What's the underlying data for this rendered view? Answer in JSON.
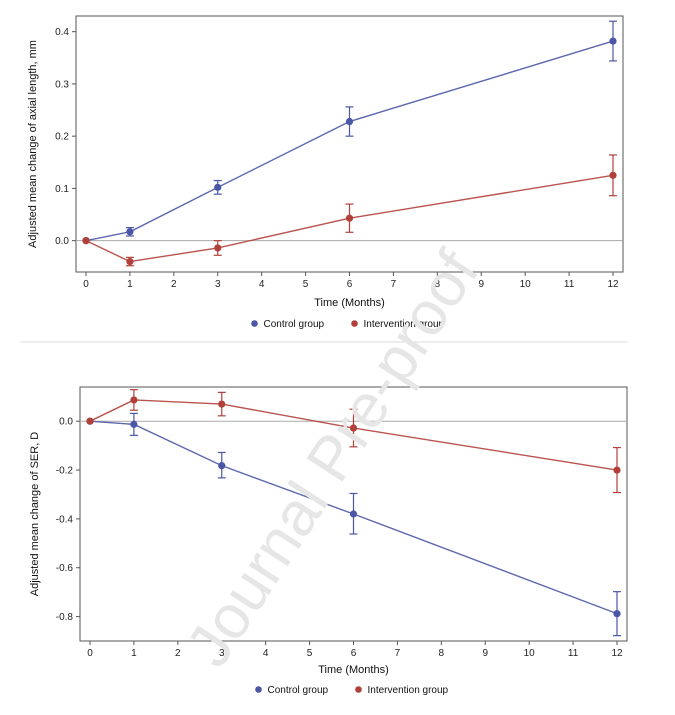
{
  "chart_data": [
    {
      "type": "line",
      "title": "",
      "xlabel": "Time (Months)",
      "ylabel": "Adjusted mean change of axial length, mm",
      "xlim": [
        0,
        12
      ],
      "ylim": [
        -0.06,
        0.43
      ],
      "x_ticks": [
        0,
        1,
        2,
        3,
        4,
        5,
        6,
        7,
        8,
        9,
        10,
        11,
        12
      ],
      "y_ticks": [
        0.0,
        0.1,
        0.2,
        0.3,
        0.4
      ],
      "y_tick_labels": [
        "0.0",
        "0.1",
        "0.2",
        "0.3",
        "0.4"
      ],
      "reference_line": 0,
      "series": [
        {
          "name": "Control group",
          "color": "#4b56a6",
          "x": [
            0,
            1,
            3,
            6,
            12
          ],
          "values": [
            0.0,
            0.017,
            0.102,
            0.228,
            0.382
          ],
          "error_low": [
            0.0,
            0.009,
            0.089,
            0.2,
            0.344
          ],
          "error_high": [
            0.0,
            0.025,
            0.115,
            0.256,
            0.42
          ]
        },
        {
          "name": "Intervention group",
          "color": "#b2403a",
          "x": [
            0,
            1,
            3,
            6,
            12
          ],
          "values": [
            0.0,
            -0.04,
            -0.014,
            0.043,
            0.125
          ],
          "error_low": [
            0.0,
            -0.048,
            -0.028,
            0.016,
            0.086
          ],
          "error_high": [
            0.0,
            -0.032,
            0.0,
            0.07,
            0.164
          ]
        }
      ],
      "legend": [
        "Control group",
        "Intervention group"
      ],
      "legend_position": "bottom-center"
    },
    {
      "type": "line",
      "title": "",
      "xlabel": "Time (Months)",
      "ylabel": "Adjusted mean change of SER, D",
      "xlim": [
        0,
        12
      ],
      "ylim": [
        -0.9,
        0.14
      ],
      "x_ticks": [
        0,
        1,
        2,
        3,
        4,
        5,
        6,
        7,
        8,
        9,
        10,
        11,
        12
      ],
      "y_ticks": [
        0.0,
        -0.2,
        -0.4,
        -0.6,
        -0.8
      ],
      "y_tick_labels": [
        "0.0",
        "-0.2",
        "-0.4",
        "-0.6",
        "-0.8"
      ],
      "reference_line": 0,
      "series": [
        {
          "name": "Control group",
          "color": "#4b56a6",
          "x": [
            0,
            1,
            3,
            6,
            12
          ],
          "values": [
            0.0,
            -0.013,
            -0.182,
            -0.38,
            -0.788
          ],
          "error_low": [
            0.0,
            -0.058,
            -0.232,
            -0.462,
            -0.878
          ],
          "error_high": [
            0.0,
            0.032,
            -0.128,
            -0.296,
            -0.698
          ]
        },
        {
          "name": "Intervention group",
          "color": "#b2403a",
          "x": [
            0,
            1,
            3,
            6,
            12
          ],
          "values": [
            0.0,
            0.087,
            0.07,
            -0.028,
            -0.2
          ],
          "error_low": [
            0.0,
            0.045,
            0.022,
            -0.105,
            -0.292
          ],
          "error_high": [
            0.0,
            0.129,
            0.118,
            0.049,
            -0.108
          ]
        }
      ],
      "legend": [
        "Control group",
        "Intervention group"
      ],
      "legend_position": "bottom-center"
    }
  ],
  "watermark": "Journal Pre-proof",
  "colors": {
    "axis": "#555555",
    "zero_line": "#aaaaaa",
    "divider": "#dddddd"
  }
}
